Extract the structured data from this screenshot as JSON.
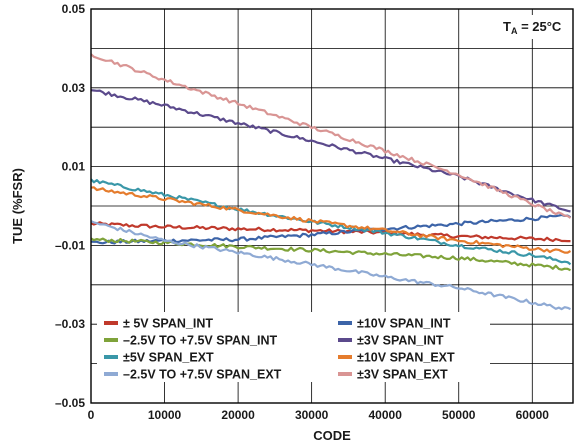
{
  "chart_data": {
    "type": "line",
    "title": "",
    "xlabel": "CODE",
    "ylabel": "TUE (%FSR)",
    "xlim": [
      0,
      65535
    ],
    "ylim": [
      -0.05,
      0.05
    ],
    "x_ticks": [
      0,
      10000,
      20000,
      30000,
      40000,
      50000,
      60000
    ],
    "x_tick_labels": [
      "0",
      "10000",
      "20000",
      "30000",
      "40000",
      "50000",
      "60000"
    ],
    "y_ticks": [
      -0.05,
      -0.03,
      -0.01,
      0.01,
      0.03,
      0.05
    ],
    "y_tick_labels": [
      "–0.05",
      "–0.03",
      "–0.01",
      "0.01",
      "0.03",
      "0.05"
    ],
    "grid": true,
    "annotation": {
      "main": "T",
      "sub": "A",
      "rest": " = 25°C"
    },
    "legend_position": "bottom-left",
    "series": [
      {
        "name": "± 5V SPAN_INT",
        "color": "#c0392b",
        "x": [
          0,
          10000,
          20000,
          30000,
          40000,
          50000,
          60000,
          65535
        ],
        "y": [
          -0.0045,
          -0.0053,
          -0.0058,
          -0.0062,
          -0.0068,
          -0.0077,
          -0.0083,
          -0.0086
        ]
      },
      {
        "name": "±10V SPAN_INT",
        "color": "#3c64a8",
        "x": [
          0,
          10000,
          20000,
          30000,
          40000,
          50000,
          60000,
          65535
        ],
        "y": [
          -0.0093,
          -0.0088,
          -0.0085,
          -0.0073,
          -0.0058,
          -0.0045,
          -0.0032,
          -0.0025
        ]
      },
      {
        "name": "–2.5V TO +7.5V SPAN_INT",
        "color": "#7fa33a",
        "x": [
          0,
          10000,
          20000,
          30000,
          40000,
          50000,
          60000,
          65535
        ],
        "y": [
          -0.0085,
          -0.0093,
          -0.0103,
          -0.0112,
          -0.0122,
          -0.0132,
          -0.015,
          -0.016
        ]
      },
      {
        "name": "±3V SPAN_INT",
        "color": "#5b4a8c",
        "x": [
          0,
          10000,
          20000,
          30000,
          40000,
          50000,
          60000,
          65535
        ],
        "y": [
          0.0295,
          0.0255,
          0.021,
          0.0165,
          0.012,
          0.0075,
          0.0015,
          -0.0015
        ]
      },
      {
        "name": "±5V SPAN_EXT",
        "color": "#3a97a8",
        "x": [
          0,
          10000,
          20000,
          30000,
          40000,
          50000,
          60000,
          65535
        ],
        "y": [
          0.0065,
          0.0028,
          -0.0008,
          -0.004,
          -0.0068,
          -0.01,
          -0.0125,
          -0.0145
        ]
      },
      {
        "name": "±10V SPAN_EXT",
        "color": "#e57c2d",
        "x": [
          0,
          10000,
          20000,
          30000,
          40000,
          50000,
          60000,
          65535
        ],
        "y": [
          0.0045,
          0.0018,
          -0.001,
          -0.0038,
          -0.0062,
          -0.0088,
          -0.0108,
          -0.0118
        ]
      },
      {
        "name": "–2.5V TO +7.5V SPAN_EXT",
        "color": "#8faad4",
        "x": [
          0,
          10000,
          20000,
          30000,
          40000,
          50000,
          60000,
          65535
        ],
        "y": [
          -0.004,
          -0.0088,
          -0.0118,
          -0.0148,
          -0.018,
          -0.0208,
          -0.0245,
          -0.0265
        ]
      },
      {
        "name": "±3V SPAN_EXT",
        "color": "#d99594",
        "x": [
          0,
          10000,
          20000,
          30000,
          40000,
          50000,
          60000,
          65535
        ],
        "y": [
          0.0385,
          0.032,
          0.026,
          0.02,
          0.014,
          0.008,
          0.0005,
          -0.0035
        ]
      }
    ]
  }
}
